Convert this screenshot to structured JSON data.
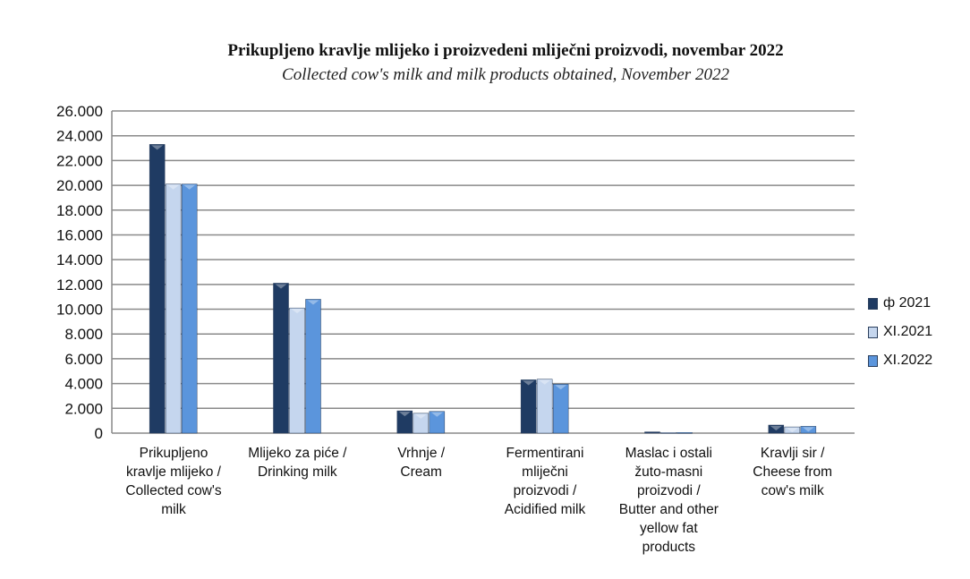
{
  "chart_data": {
    "type": "bar",
    "title": "Prikupljeno kravlje mlijeko i proizvedeni mliječni proizvodi, novembar 2022",
    "subtitle": "Collected cow's milk and milk products obtained, November 2022",
    "categories": [
      "Prikupljeno\nkravlje mlijeko /\nCollected cow's\nmilk",
      "Mlijeko za piće /\nDrinking milk",
      "Vrhnje /\nCream",
      "Fermentirani\nmliječni\nproizvodi /\nAcidified milk",
      "Maslac i ostali\nžuto-masni\nproizvodi /\nButter and other\nyellow fat\nproducts",
      "Kravlji sir /\nCheese from\ncow's milk"
    ],
    "series": [
      {
        "name": "ф 2021",
        "color": "#1f3b63",
        "values": [
          23300,
          12100,
          1800,
          4300,
          100,
          650
        ]
      },
      {
        "name": "XI.2021",
        "color": "#c5d6ee",
        "values": [
          20100,
          10100,
          1600,
          4350,
          50,
          500
        ]
      },
      {
        "name": "XI.2022",
        "color": "#5b95dc",
        "values": [
          20100,
          10800,
          1750,
          3950,
          50,
          550
        ]
      }
    ],
    "yticks": [
      "0",
      "2.000",
      "4.000",
      "6.000",
      "8.000",
      "10.000",
      "12.000",
      "14.000",
      "16.000",
      "18.000",
      "20.000",
      "22.000",
      "24.000",
      "26.000"
    ],
    "ylim": [
      0,
      26000
    ],
    "grid": true,
    "legend": "right"
  }
}
